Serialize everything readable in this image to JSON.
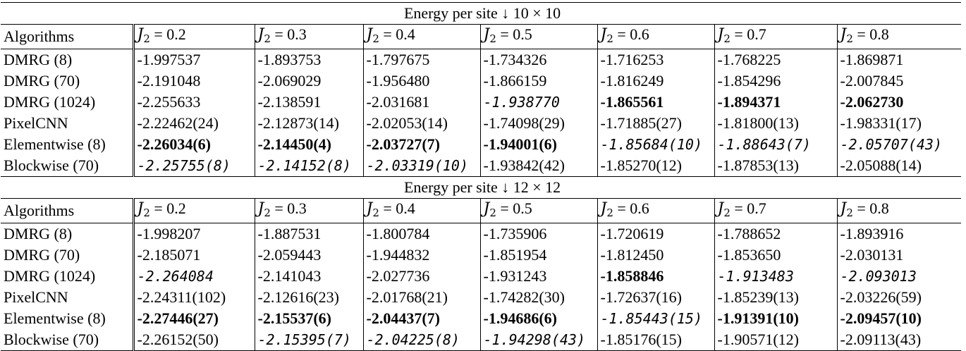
{
  "tables": [
    {
      "title_prefix": "Energy per site",
      "title_arrow": "↓",
      "title_size": "10 × 10",
      "header": {
        "first": "Algorithms",
        "columns": [
          {
            "sym": "J",
            "sub": "2",
            "eq": " = 0.2"
          },
          {
            "sym": "J",
            "sub": "2",
            "eq": " = 0.3"
          },
          {
            "sym": "J",
            "sub": "2",
            "eq": " = 0.4"
          },
          {
            "sym": "J",
            "sub": "2",
            "eq": " = 0.5"
          },
          {
            "sym": "J",
            "sub": "2",
            "eq": " = 0.6"
          },
          {
            "sym": "J",
            "sub": "2",
            "eq": " = 0.7"
          },
          {
            "sym": "J",
            "sub": "2",
            "eq": " = 0.8"
          }
        ]
      },
      "rows": [
        {
          "label": "DMRG (8)",
          "cells": [
            {
              "v": "-1.997537",
              "s": "n"
            },
            {
              "v": "-1.893753",
              "s": "n"
            },
            {
              "v": "-1.797675",
              "s": "n"
            },
            {
              "v": "-1.734326",
              "s": "n"
            },
            {
              "v": "-1.716253",
              "s": "n"
            },
            {
              "v": "-1.768225",
              "s": "n"
            },
            {
              "v": "-1.869871",
              "s": "n"
            }
          ]
        },
        {
          "label": "DMRG (70)",
          "cells": [
            {
              "v": "-2.191048",
              "s": "n"
            },
            {
              "v": "-2.069029",
              "s": "n"
            },
            {
              "v": "-1.956480",
              "s": "n"
            },
            {
              "v": "-1.866159",
              "s": "n"
            },
            {
              "v": "-1.816249",
              "s": "n"
            },
            {
              "v": "-1.854296",
              "s": "n"
            },
            {
              "v": "-2.007845",
              "s": "n"
            }
          ]
        },
        {
          "label": "DMRG (1024)",
          "cells": [
            {
              "v": "-2.255633",
              "s": "n"
            },
            {
              "v": "-2.138591",
              "s": "n"
            },
            {
              "v": "-2.031681",
              "s": "n"
            },
            {
              "v": "-1.938770",
              "s": "i"
            },
            {
              "v": "-1.865561",
              "s": "b"
            },
            {
              "v": "-1.894371",
              "s": "b"
            },
            {
              "v": "-2.062730",
              "s": "b"
            }
          ]
        },
        {
          "label": "PixelCNN",
          "cells": [
            {
              "v": "-2.22462(24)",
              "s": "n"
            },
            {
              "v": "-2.12873(14)",
              "s": "n"
            },
            {
              "v": "-2.02053(14)",
              "s": "n"
            },
            {
              "v": "-1.74098(29)",
              "s": "n"
            },
            {
              "v": "-1.71885(27)",
              "s": "n"
            },
            {
              "v": "-1.81800(13)",
              "s": "n"
            },
            {
              "v": "-1.98331(17)",
              "s": "n"
            }
          ]
        },
        {
          "label": "Elementwise (8)",
          "cells": [
            {
              "v": "-2.26034(6)",
              "s": "b"
            },
            {
              "v": "-2.14450(4)",
              "s": "b"
            },
            {
              "v": "-2.03727(7)",
              "s": "b"
            },
            {
              "v": "-1.94001(6)",
              "s": "b"
            },
            {
              "v": "-1.85684(10)",
              "s": "i"
            },
            {
              "v": "-1.88643(7)",
              "s": "i"
            },
            {
              "v": "-2.05707(43)",
              "s": "i"
            }
          ]
        },
        {
          "label": "Blockwise (70)",
          "cells": [
            {
              "v": "-2.25755(8)",
              "s": "i"
            },
            {
              "v": "-2.14152(8)",
              "s": "i"
            },
            {
              "v": "-2.03319(10)",
              "s": "i"
            },
            {
              "v": "-1.93842(42)",
              "s": "n"
            },
            {
              "v": "-1.85270(12)",
              "s": "n"
            },
            {
              "v": "-1.87853(13)",
              "s": "n"
            },
            {
              "v": "-2.05088(14)",
              "s": "n"
            }
          ]
        }
      ]
    },
    {
      "title_prefix": "Energy per site",
      "title_arrow": "↓",
      "title_size": "12 × 12",
      "header": {
        "first": "Algorithms",
        "columns": [
          {
            "sym": "J",
            "sub": "2",
            "eq": " = 0.2"
          },
          {
            "sym": "J",
            "sub": "2",
            "eq": " = 0.3"
          },
          {
            "sym": "J",
            "sub": "2",
            "eq": " = 0.4"
          },
          {
            "sym": "J",
            "sub": "2",
            "eq": " = 0.5"
          },
          {
            "sym": "J",
            "sub": "2",
            "eq": " = 0.6"
          },
          {
            "sym": "J",
            "sub": "2",
            "eq": " = 0.7"
          },
          {
            "sym": "J",
            "sub": "2",
            "eq": " = 0.8"
          }
        ]
      },
      "rows": [
        {
          "label": "DMRG (8)",
          "cells": [
            {
              "v": "-1.998207",
              "s": "n"
            },
            {
              "v": "-1.887531",
              "s": "n"
            },
            {
              "v": "-1.800784",
              "s": "n"
            },
            {
              "v": "-1.735906",
              "s": "n"
            },
            {
              "v": "-1.720619",
              "s": "n"
            },
            {
              "v": "-1.788652",
              "s": "n"
            },
            {
              "v": "-1.893916",
              "s": "n"
            }
          ]
        },
        {
          "label": "DMRG (70)",
          "cells": [
            {
              "v": "-2.185071",
              "s": "n"
            },
            {
              "v": "-2.059443",
              "s": "n"
            },
            {
              "v": "-1.944832",
              "s": "n"
            },
            {
              "v": "-1.851954",
              "s": "n"
            },
            {
              "v": "-1.812450",
              "s": "n"
            },
            {
              "v": "-1.853650",
              "s": "n"
            },
            {
              "v": "-2.030131",
              "s": "n"
            }
          ]
        },
        {
          "label": "DMRG (1024)",
          "cells": [
            {
              "v": "-2.264084",
              "s": "i"
            },
            {
              "v": "-2.141043",
              "s": "n"
            },
            {
              "v": "-2.027736",
              "s": "n"
            },
            {
              "v": "-1.931243",
              "s": "n"
            },
            {
              "v": "-1.858846",
              "s": "b"
            },
            {
              "v": "-1.913483",
              "s": "i"
            },
            {
              "v": "-2.093013",
              "s": "i"
            }
          ]
        },
        {
          "label": "PixelCNN",
          "cells": [
            {
              "v": "-2.24311(102)",
              "s": "n"
            },
            {
              "v": "-2.12616(23)",
              "s": "n"
            },
            {
              "v": "-2.01768(21)",
              "s": "n"
            },
            {
              "v": "-1.74282(30)",
              "s": "n"
            },
            {
              "v": "-1.72637(16)",
              "s": "n"
            },
            {
              "v": "-1.85239(13)",
              "s": "n"
            },
            {
              "v": "-2.03226(59)",
              "s": "n"
            }
          ]
        },
        {
          "label": "Elementwise (8)",
          "cells": [
            {
              "v": "-2.27446(27)",
              "s": "b"
            },
            {
              "v": "-2.15537(6)",
              "s": "b"
            },
            {
              "v": "-2.04437(7)",
              "s": "b"
            },
            {
              "v": "-1.94686(6)",
              "s": "b"
            },
            {
              "v": "-1.85443(15)",
              "s": "i"
            },
            {
              "v": "-1.91391(10)",
              "s": "b"
            },
            {
              "v": "-2.09457(10)",
              "s": "b"
            }
          ]
        },
        {
          "label": "Blockwise (70)",
          "cells": [
            {
              "v": "-2.26152(50)",
              "s": "n"
            },
            {
              "v": "-2.15395(7)",
              "s": "i"
            },
            {
              "v": "-2.04225(8)",
              "s": "i"
            },
            {
              "v": "-1.94298(43)",
              "s": "i"
            },
            {
              "v": "-1.85176(15)",
              "s": "n"
            },
            {
              "v": "-1.90571(12)",
              "s": "n"
            },
            {
              "v": "-2.09113(43)",
              "s": "n"
            }
          ]
        }
      ]
    }
  ]
}
